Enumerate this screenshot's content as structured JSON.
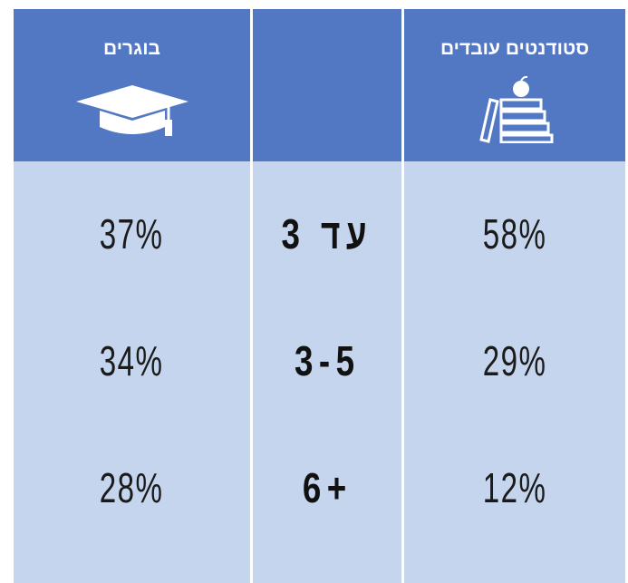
{
  "graduates": {
    "title": "בוגרים",
    "values": [
      "37%",
      "34%",
      "28%"
    ]
  },
  "ranges": [
    "עד 3",
    "3-5",
    "6+"
  ],
  "students": {
    "title": "סטודנטים עובדים",
    "values": [
      "58%",
      "29%",
      "12%"
    ]
  }
}
